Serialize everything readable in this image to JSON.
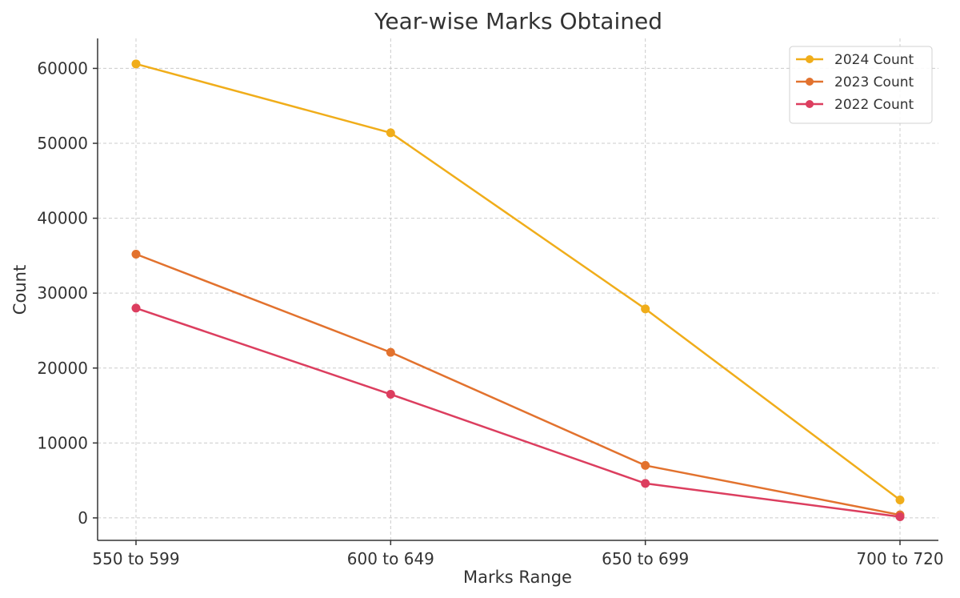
{
  "chart_data": {
    "type": "line",
    "title": "Year-wise Marks Obtained",
    "xlabel": "Marks Range",
    "ylabel": "Count",
    "categories": [
      "550 to 599",
      "600 to 649",
      "650 to 699",
      "700 to 720"
    ],
    "ylim": [
      -3000,
      64000
    ],
    "yticks": [
      0,
      10000,
      20000,
      30000,
      40000,
      50000,
      60000
    ],
    "ytick_labels": [
      "0",
      "10000",
      "20000",
      "30000",
      "40000",
      "50000",
      "60000"
    ],
    "grid": true,
    "legend_position": "top-right",
    "series": [
      {
        "name": "2024 Count",
        "color": "#f0ad1a",
        "values": [
          60600,
          51400,
          27900,
          2400
        ]
      },
      {
        "name": "2023 Count",
        "color": "#e2722e",
        "values": [
          35200,
          22100,
          7000,
          400
        ]
      },
      {
        "name": "2022 Count",
        "color": "#dc3e5f",
        "values": [
          28000,
          16500,
          4600,
          150
        ]
      }
    ]
  }
}
